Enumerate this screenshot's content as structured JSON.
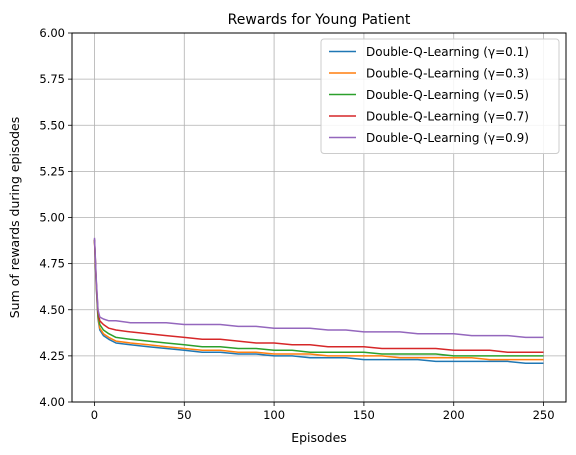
{
  "chart_data": {
    "type": "line",
    "title": "Rewards for Young Patient",
    "xlabel": "Episodes",
    "ylabel": "Sum of rewards during episodes",
    "xlim": [
      -12.5,
      262.5
    ],
    "ylim": [
      4.0,
      6.0
    ],
    "xticks": [
      0,
      50,
      100,
      150,
      200,
      250
    ],
    "yticks": [
      4.0,
      4.25,
      4.5,
      4.75,
      5.0,
      5.25,
      5.5,
      5.75,
      6.0
    ],
    "xtick_labels": [
      "0",
      "50",
      "100",
      "150",
      "200",
      "250"
    ],
    "ytick_labels": [
      "4.00",
      "4.25",
      "4.50",
      "4.75",
      "5.00",
      "5.25",
      "5.50",
      "5.75",
      "6.00"
    ],
    "grid": true,
    "legend_position": "top-right",
    "series": [
      {
        "name": "Double-Q-Learning (γ=0.1)",
        "color": "#1f77b4",
        "x": [
          0,
          1,
          2,
          3,
          5,
          8,
          12,
          20,
          30,
          40,
          50,
          60,
          70,
          80,
          90,
          100,
          110,
          120,
          130,
          140,
          150,
          160,
          170,
          180,
          190,
          200,
          210,
          220,
          230,
          240,
          250
        ],
        "values": [
          4.88,
          4.62,
          4.45,
          4.39,
          4.36,
          4.34,
          4.32,
          4.31,
          4.3,
          4.29,
          4.28,
          4.27,
          4.27,
          4.26,
          4.26,
          4.25,
          4.25,
          4.24,
          4.24,
          4.24,
          4.23,
          4.23,
          4.23,
          4.23,
          4.22,
          4.22,
          4.22,
          4.22,
          4.22,
          4.21,
          4.21
        ]
      },
      {
        "name": "Double-Q-Learning (γ=0.3)",
        "color": "#ff7f0e",
        "x": [
          0,
          1,
          2,
          3,
          5,
          8,
          12,
          20,
          30,
          40,
          50,
          60,
          70,
          80,
          90,
          100,
          110,
          120,
          130,
          140,
          150,
          160,
          170,
          180,
          190,
          200,
          210,
          220,
          230,
          240,
          250
        ],
        "values": [
          4.87,
          4.63,
          4.46,
          4.4,
          4.37,
          4.35,
          4.33,
          4.32,
          4.31,
          4.3,
          4.29,
          4.28,
          4.28,
          4.27,
          4.27,
          4.26,
          4.26,
          4.26,
          4.25,
          4.25,
          4.25,
          4.25,
          4.24,
          4.24,
          4.24,
          4.24,
          4.24,
          4.23,
          4.23,
          4.23,
          4.23
        ]
      },
      {
        "name": "Double-Q-Learning (γ=0.5)",
        "color": "#2ca02c",
        "x": [
          0,
          1,
          2,
          3,
          5,
          8,
          12,
          20,
          30,
          40,
          50,
          60,
          70,
          80,
          90,
          100,
          110,
          120,
          130,
          140,
          150,
          160,
          170,
          180,
          190,
          200,
          210,
          220,
          230,
          240,
          250
        ],
        "values": [
          4.88,
          4.64,
          4.47,
          4.42,
          4.39,
          4.37,
          4.35,
          4.34,
          4.33,
          4.32,
          4.31,
          4.3,
          4.3,
          4.29,
          4.29,
          4.28,
          4.28,
          4.27,
          4.27,
          4.27,
          4.27,
          4.26,
          4.26,
          4.26,
          4.26,
          4.25,
          4.25,
          4.25,
          4.25,
          4.25,
          4.25
        ]
      },
      {
        "name": "Double-Q-Learning (γ=0.7)",
        "color": "#d62728",
        "x": [
          0,
          1,
          2,
          3,
          5,
          8,
          12,
          20,
          30,
          40,
          50,
          60,
          70,
          80,
          90,
          100,
          110,
          120,
          130,
          140,
          150,
          160,
          170,
          180,
          190,
          200,
          210,
          220,
          230,
          240,
          250
        ],
        "values": [
          4.88,
          4.65,
          4.49,
          4.44,
          4.42,
          4.4,
          4.39,
          4.38,
          4.37,
          4.36,
          4.35,
          4.34,
          4.34,
          4.33,
          4.32,
          4.32,
          4.31,
          4.31,
          4.3,
          4.3,
          4.3,
          4.29,
          4.29,
          4.29,
          4.29,
          4.28,
          4.28,
          4.28,
          4.27,
          4.27,
          4.27
        ]
      },
      {
        "name": "Double-Q-Learning (γ=0.9)",
        "color": "#9467bd",
        "x": [
          0,
          1,
          2,
          3,
          5,
          8,
          12,
          20,
          30,
          40,
          50,
          60,
          70,
          80,
          90,
          100,
          110,
          120,
          130,
          140,
          150,
          160,
          170,
          180,
          190,
          200,
          210,
          220,
          230,
          240,
          250
        ],
        "values": [
          4.89,
          4.66,
          4.5,
          4.46,
          4.45,
          4.44,
          4.44,
          4.43,
          4.43,
          4.43,
          4.42,
          4.42,
          4.42,
          4.41,
          4.41,
          4.4,
          4.4,
          4.4,
          4.39,
          4.39,
          4.38,
          4.38,
          4.38,
          4.37,
          4.37,
          4.37,
          4.36,
          4.36,
          4.36,
          4.35,
          4.35
        ]
      }
    ]
  }
}
